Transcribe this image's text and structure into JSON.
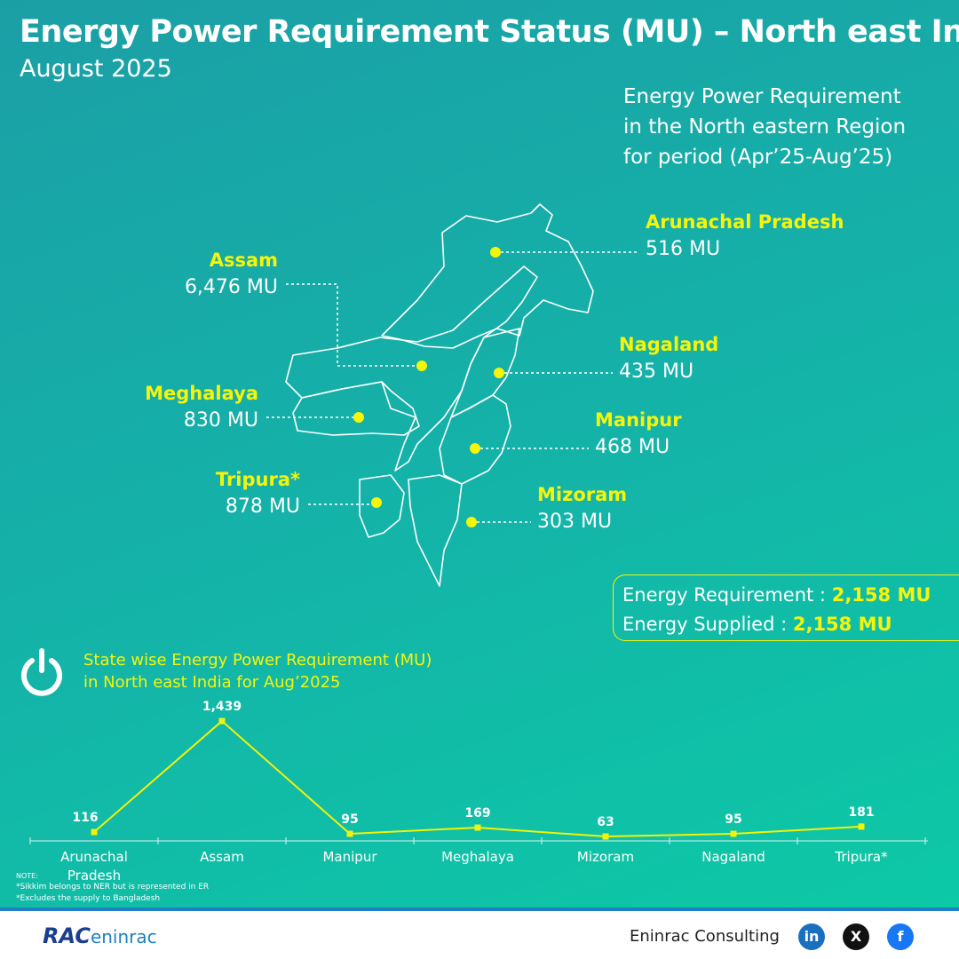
{
  "header": {
    "title": "Energy Power Requirement Status (MU) – North east India",
    "subtitle": "August 2025"
  },
  "region_note": "Energy Power Requirement\nin the North eastern Region\nfor period (Apr’25-Aug’25)",
  "map": {
    "states": [
      {
        "name": "Arunachal Pradesh",
        "value": "516 MU"
      },
      {
        "name": "Assam",
        "value": "6,476 MU"
      },
      {
        "name": "Nagaland",
        "value": "435 MU"
      },
      {
        "name": "Meghalaya",
        "value": "830 MU"
      },
      {
        "name": "Manipur",
        "value": "468 MU"
      },
      {
        "name": "Tripura*",
        "value": "878 MU"
      },
      {
        "name": "Mizoram",
        "value": "303 MU"
      }
    ]
  },
  "summary": {
    "rows": [
      {
        "label": "Energy Requirement :",
        "value": "2,158 MU"
      },
      {
        "label": "Energy Supplied :",
        "value": "2,158 MU"
      }
    ]
  },
  "chart_data": {
    "type": "line",
    "title": "State wise Energy Power Requirement (MU)\nin North east India for Aug’2025",
    "categories": [
      "Arunachal Pradesh",
      "Assam",
      "Manipur",
      "Meghalaya",
      "Mizoram",
      "Nagaland",
      "Tripura*"
    ],
    "values": [
      116,
      1439,
      95,
      169,
      63,
      95,
      181
    ],
    "value_labels": [
      "116",
      "1,439",
      "95",
      "169",
      "63",
      "95",
      "181"
    ],
    "color": "#f2f20a"
  },
  "notes": {
    "heading": "NOTE:",
    "lines": [
      "*Sikkim belongs to NER but is represented in ER",
      "*Excludes the supply to Bangladesh"
    ]
  },
  "footer": {
    "logo_mark": "RAC",
    "logo_text": "eninrac",
    "company": "Eninrac Consulting",
    "social": [
      "in",
      "X",
      "f"
    ]
  }
}
